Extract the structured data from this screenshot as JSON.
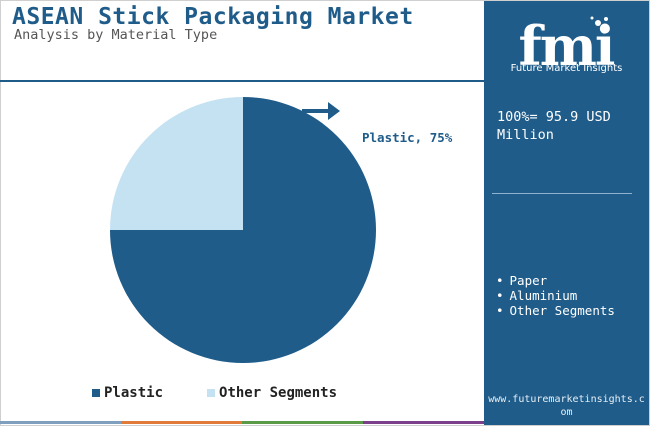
{
  "header": {
    "title": "ASEAN Stick Packaging Market",
    "subtitle": "Analysis by Material Type"
  },
  "chart_data": {
    "type": "pie",
    "title": "ASEAN Stick Packaging Market",
    "subtitle": "Analysis by Material Type",
    "categories": [
      "Plastic",
      "Other Segments"
    ],
    "values": [
      75,
      25
    ],
    "colors": [
      "#1f5c8a",
      "#c5e2f2"
    ],
    "data_labels": [
      "Plastic, 75%"
    ],
    "legend_position": "bottom",
    "start_angle_deg": 0,
    "direction": "clockwise"
  },
  "legend": {
    "items": [
      {
        "label": "Plastic",
        "color": "#1f5c8a"
      },
      {
        "label": "Other Segments",
        "color": "#c5e2f2"
      }
    ]
  },
  "panel": {
    "logo_letters": "fmi",
    "logo_name": "Future Market Insights",
    "market_size": "100%= 95.9 USD Million",
    "segments": [
      "Paper",
      "Aluminium",
      "Other Segments"
    ],
    "website": "www.futuremarketinsights.com",
    "bg_color": "#1f5c8a"
  },
  "bottom_bar_colors": [
    "#7f9fbf",
    "#e07b39",
    "#5b9b48",
    "#7b3f8c"
  ]
}
